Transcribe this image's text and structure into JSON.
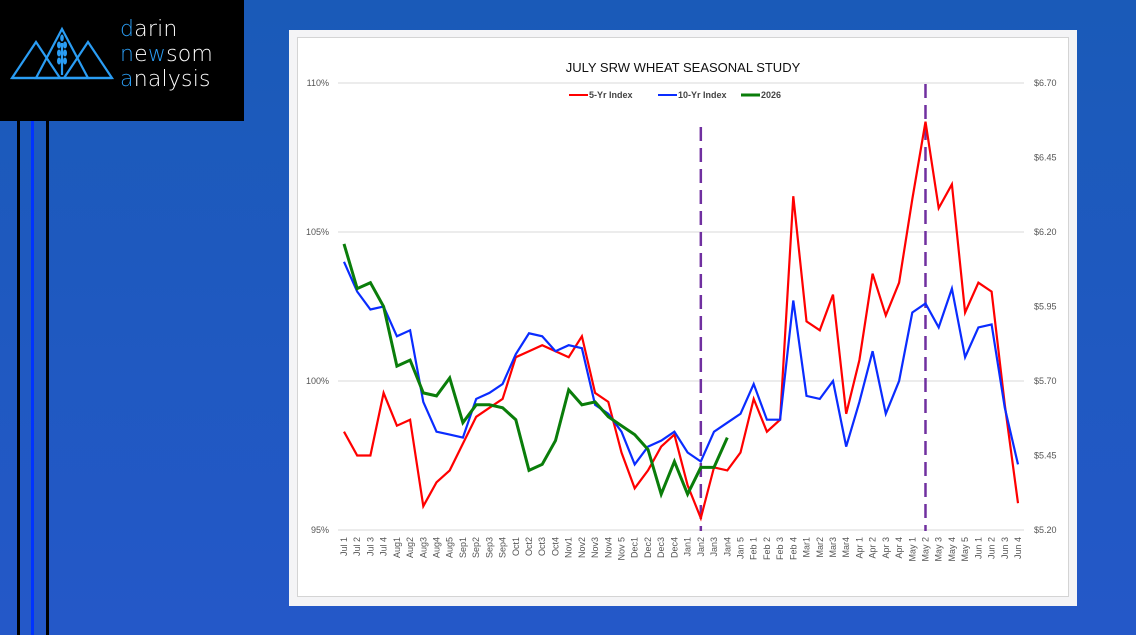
{
  "brand": {
    "lines": [
      {
        "accent": "d",
        "rest": "arin"
      },
      {
        "accent": "n",
        "mid": "ew",
        "rest2": "som",
        "pre": "n"
      },
      {
        "accent": "a",
        "rest": "nalysis"
      }
    ],
    "name_line1": "darin",
    "name_line2": "newsom",
    "name_line3": "analysis",
    "accent_color": "#2a9df4",
    "icon": "mountains-wheat-icon"
  },
  "chart_data": {
    "type": "line",
    "title": "JULY SRW WHEAT SEASONAL STUDY",
    "xlabel": "",
    "ylabel": "",
    "y_left": {
      "ticks": [
        "95%",
        "100%",
        "105%",
        "110%"
      ],
      "range": [
        95,
        110
      ]
    },
    "y_right": {
      "ticks": [
        "$5.20",
        "$5.45",
        "$5.70",
        "$5.95",
        "$6.20",
        "$6.45",
        "$6.70"
      ],
      "range": [
        5.2,
        6.7
      ]
    },
    "grid": true,
    "legend": {
      "placement": "top-center",
      "entries": [
        "5-Yr Index",
        "10-Yr Index",
        "2026"
      ]
    },
    "categories": [
      "Jul 1",
      "Jul 2",
      "Jul 3",
      "Jul 4",
      "Aug1",
      "Aug2",
      "Aug3",
      "Aug4",
      "Aug5",
      "Sep1",
      "Sep2",
      "Sep3",
      "Sep4",
      "Oct1",
      "Oct2",
      "Oct3",
      "Oct4",
      "Nov1",
      "Nov2",
      "Nov3",
      "Nov4",
      "Nov 5",
      "Dec1",
      "Dec2",
      "Dec3",
      "Dec4",
      "Jan1",
      "Jan2",
      "Jan3",
      "Jan4",
      "Jan 5",
      "Feb 1",
      "Feb 2",
      "Feb 3",
      "Feb 4",
      "Mar1",
      "Mar2",
      "Mar3",
      "Mar4",
      "Apr 1",
      "Apr 2",
      "Apr 3",
      "Apr 4",
      "May 1",
      "May 2",
      "May 3",
      "May 4",
      "May 5",
      "Jun 1",
      "Jun 2",
      "Jun 3",
      "Jun 4"
    ],
    "series": [
      {
        "name": "5-Yr Index",
        "color": "#ff0000",
        "axis": "left",
        "values": [
          98.3,
          97.5,
          97.5,
          99.6,
          98.5,
          98.7,
          95.8,
          96.6,
          97.0,
          97.9,
          98.8,
          99.1,
          99.4,
          100.8,
          101.0,
          101.2,
          101.0,
          100.8,
          101.5,
          99.6,
          99.3,
          97.6,
          96.4,
          97.0,
          97.8,
          98.2,
          96.5,
          95.4,
          97.1,
          97.0,
          97.6,
          99.4,
          98.3,
          98.7,
          106.2,
          102.0,
          101.7,
          102.9,
          98.9,
          100.7,
          103.6,
          102.2,
          103.3,
          106.1,
          108.7,
          105.8,
          106.6,
          102.3,
          103.3,
          103.0,
          99.2,
          95.9
        ]
      },
      {
        "name": "10-Yr Index",
        "color": "#0a2cff",
        "axis": "left",
        "values": [
          104.0,
          103.0,
          102.4,
          102.5,
          101.5,
          101.7,
          99.3,
          98.3,
          98.2,
          98.1,
          99.4,
          99.6,
          99.9,
          100.9,
          101.6,
          101.5,
          101.0,
          101.2,
          101.1,
          99.2,
          98.9,
          98.3,
          97.2,
          97.8,
          98.0,
          98.3,
          97.6,
          97.3,
          98.3,
          98.6,
          98.9,
          99.9,
          98.7,
          98.7,
          102.7,
          99.5,
          99.4,
          100.0,
          97.8,
          99.3,
          101.0,
          98.9,
          100.0,
          102.3,
          102.6,
          101.8,
          103.1,
          100.8,
          101.8,
          101.9,
          99.1,
          97.2
        ]
      },
      {
        "name": "2026",
        "color": "#0a7d0a",
        "axis": "left",
        "values": [
          104.6,
          103.1,
          103.3,
          102.5,
          100.5,
          100.7,
          99.6,
          99.5,
          100.1,
          98.6,
          99.2,
          99.2,
          99.1,
          98.7,
          97.0,
          97.2,
          98.0,
          99.7,
          99.2,
          99.3,
          98.8,
          98.5,
          98.2,
          97.7,
          96.2,
          97.3,
          96.2,
          97.1,
          97.1,
          98.1
        ]
      }
    ],
    "vertical_markers": [
      {
        "at": "Jan2",
        "color": "#7030a0",
        "style": "dashed"
      },
      {
        "at": "May 2",
        "color": "#7030a0",
        "style": "dashed"
      }
    ]
  }
}
